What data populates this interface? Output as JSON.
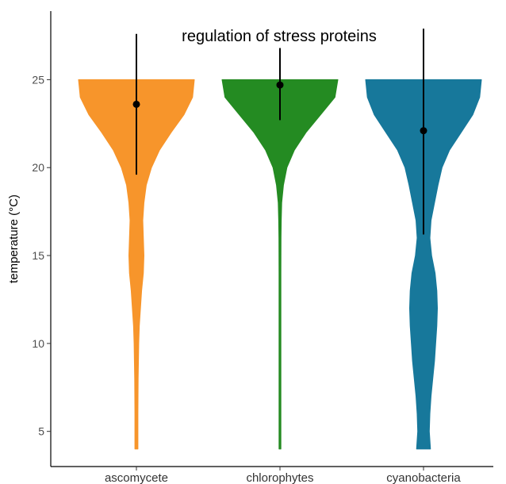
{
  "chart_data": {
    "type": "violin",
    "title": "regulation of stress proteins",
    "ylabel": "temperature (°C)",
    "xlabel": "",
    "ylim": [
      3.0,
      28.9
    ],
    "yticks": [
      5,
      10,
      15,
      20,
      25
    ],
    "grid": false,
    "legend": "none",
    "categories": [
      "ascomycete",
      "chlorophytes",
      "cyanobacteria"
    ],
    "series": [
      {
        "category": "ascomycete",
        "color": "#F7952B",
        "point": 23.6,
        "error_low": 19.6,
        "error_high": 27.6,
        "range": [
          4.0,
          25.0
        ],
        "density": [
          [
            25.0,
            1.0
          ],
          [
            24.0,
            0.97
          ],
          [
            23.0,
            0.82
          ],
          [
            22.0,
            0.6
          ],
          [
            21.0,
            0.4
          ],
          [
            20.0,
            0.26
          ],
          [
            19.0,
            0.17
          ],
          [
            18.0,
            0.13
          ],
          [
            17.0,
            0.11
          ],
          [
            16.0,
            0.12
          ],
          [
            15.0,
            0.13
          ],
          [
            14.0,
            0.12
          ],
          [
            13.0,
            0.09
          ],
          [
            12.0,
            0.07
          ],
          [
            11.0,
            0.05
          ],
          [
            10.0,
            0.04
          ],
          [
            9.0,
            0.035
          ],
          [
            8.0,
            0.03
          ],
          [
            7.0,
            0.028
          ],
          [
            6.0,
            0.026
          ],
          [
            5.0,
            0.026
          ],
          [
            4.0,
            0.026
          ]
        ]
      },
      {
        "category": "chlorophytes",
        "color": "#248B22",
        "point": 24.7,
        "error_low": 22.7,
        "error_high": 26.8,
        "range": [
          4.0,
          25.0
        ],
        "density": [
          [
            25.0,
            1.0
          ],
          [
            24.0,
            0.95
          ],
          [
            23.0,
            0.7
          ],
          [
            22.0,
            0.45
          ],
          [
            21.0,
            0.25
          ],
          [
            20.0,
            0.12
          ],
          [
            19.0,
            0.06
          ],
          [
            18.0,
            0.03
          ],
          [
            17.0,
            0.022
          ],
          [
            16.0,
            0.018
          ],
          [
            14.0,
            0.016
          ],
          [
            10.0,
            0.016
          ],
          [
            6.0,
            0.016
          ],
          [
            4.0,
            0.016
          ]
        ]
      },
      {
        "category": "cyanobacteria",
        "color": "#17789B",
        "point": 22.1,
        "error_low": 16.2,
        "error_high": 27.9,
        "range": [
          4.0,
          25.0
        ],
        "density": [
          [
            25.0,
            1.0
          ],
          [
            24.0,
            0.97
          ],
          [
            23.0,
            0.85
          ],
          [
            22.0,
            0.65
          ],
          [
            21.0,
            0.45
          ],
          [
            20.0,
            0.32
          ],
          [
            19.0,
            0.25
          ],
          [
            18.0,
            0.19
          ],
          [
            17.0,
            0.13
          ],
          [
            16.0,
            0.11
          ],
          [
            15.0,
            0.14
          ],
          [
            14.0,
            0.2
          ],
          [
            13.0,
            0.23
          ],
          [
            12.0,
            0.24
          ],
          [
            11.0,
            0.23
          ],
          [
            10.0,
            0.21
          ],
          [
            9.0,
            0.19
          ],
          [
            8.0,
            0.16
          ],
          [
            7.0,
            0.13
          ],
          [
            6.0,
            0.11
          ],
          [
            5.0,
            0.1
          ],
          [
            4.0,
            0.12
          ]
        ]
      }
    ]
  }
}
